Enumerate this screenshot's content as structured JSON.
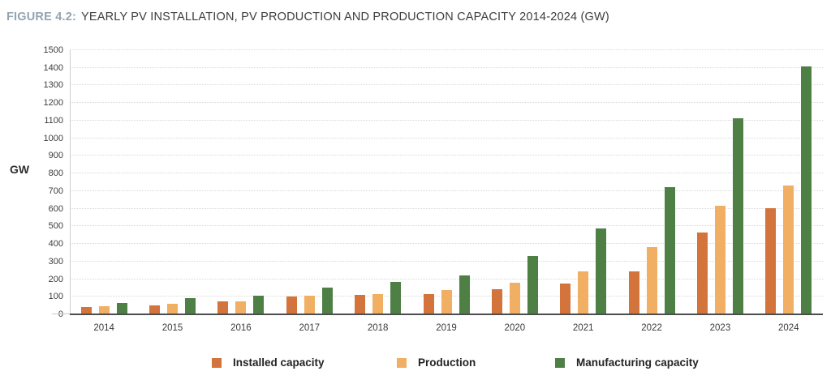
{
  "header": {
    "figure_label": "FIGURE 4.2:",
    "title": "YEARLY PV INSTALLATION, PV PRODUCTION AND PRODUCTION CAPACITY 2014-2024 (GW)"
  },
  "colors": {
    "figure_label": "#93A4B1",
    "title_text": "#3C3C3B",
    "installed_capacity": "#D2743B",
    "production": "#F0AF62",
    "manufacturing_capacity": "#4E7F45",
    "gridline": "#D8D8D8",
    "baseline": "#4D4D4F"
  },
  "chart_data": {
    "type": "bar",
    "title": "YEARLY PV INSTALLATION, PV PRODUCTION AND PRODUCTION CAPACITY 2014-2024 (GW)",
    "categories": [
      "2014",
      "2015",
      "2016",
      "2017",
      "2018",
      "2019",
      "2020",
      "2021",
      "2022",
      "2023",
      "2024"
    ],
    "series": [
      {
        "name": "Installed capacity",
        "color": "#D2743B",
        "values": [
          40,
          49,
          75,
          102,
          110,
          115,
          145,
          173,
          245,
          467,
          603
        ]
      },
      {
        "name": "Production",
        "color": "#F0AF62",
        "values": [
          46,
          60,
          74,
          105,
          116,
          140,
          179,
          245,
          382,
          617,
          731
        ]
      },
      {
        "name": "Manufacturing capacity",
        "color": "#4E7F45",
        "values": [
          64,
          94,
          106,
          153,
          184,
          221,
          330,
          487,
          722,
          1112,
          1410
        ]
      }
    ],
    "xlabel": "",
    "ylabel": "GW",
    "ylim": [
      0,
      1500
    ],
    "ytick_step": 100,
    "grid": "horizontal-dotted",
    "legend_position": "bottom"
  }
}
